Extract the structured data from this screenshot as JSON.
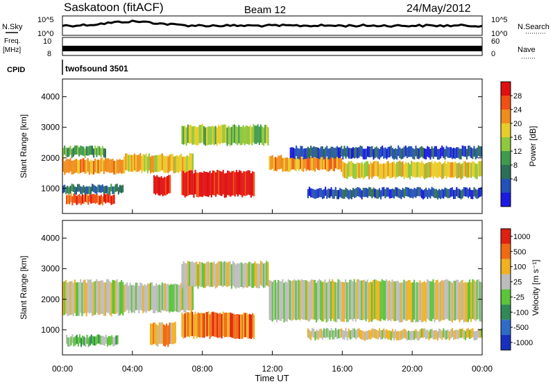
{
  "header": {
    "station": "Saskatoon (fitACF)",
    "beam": "Beam 12",
    "date": "24/May/2012"
  },
  "top_panels": {
    "nsky_label": "N.Sky",
    "nsky_top": "10^5",
    "nsky_bottom": "10^0",
    "nsearch_label": "N.Search",
    "nsearch_top": "10^5",
    "nsearch_bottom": "10^0",
    "freq_label": "Freq.",
    "freq_unit": "[MHz]",
    "freq_tick_top": "10",
    "freq_tick_bottom": "8",
    "nave_label": "Nave",
    "nave_tick_top": "60",
    "nave_tick_bottom": "0",
    "cpid_label": "CPID",
    "cpid_value": "twofsound 3501"
  },
  "colors": {
    "power_scale": [
      "#1a1ae0",
      "#2450b8",
      "#2e6e58",
      "#3f9a4c",
      "#8fc83c",
      "#e8cc2a",
      "#f08c1c",
      "#f05014",
      "#e01010"
    ],
    "velocity_scale": [
      "#1830c0",
      "#2f6cc8",
      "#2f8a55",
      "#5cc43a",
      "#bcbcbc",
      "#f0b020",
      "#f06a14",
      "#e02010"
    ]
  },
  "chart_data": [
    {
      "type": "heatmap",
      "name": "power",
      "ylabel": "Slant Range [km]",
      "xlabel": "",
      "colorbar_label": "Power [dB]",
      "colorbar_ticks": [
        "28",
        "24",
        "20",
        "16",
        "12",
        "8",
        "4"
      ],
      "y_ticks": [
        "4000",
        "3000",
        "2000",
        "1000"
      ],
      "ylim": [
        180,
        4580
      ],
      "xlim_hours": [
        0,
        24
      ],
      "bands": [
        {
          "t0": 0,
          "t1": 3.5,
          "r0": 1500,
          "r1": 1950,
          "level": 6
        },
        {
          "t0": 0,
          "t1": 2.5,
          "r0": 2050,
          "r1": 2350,
          "level": 3
        },
        {
          "t0": 0.2,
          "t1": 3.0,
          "r0": 500,
          "r1": 800,
          "level": 7
        },
        {
          "t0": 0,
          "t1": 3.5,
          "r0": 850,
          "r1": 1100,
          "level": 2
        },
        {
          "t0": 3.5,
          "t1": 7.5,
          "r0": 1550,
          "r1": 2100,
          "level": 5
        },
        {
          "t0": 5.2,
          "t1": 6.2,
          "r0": 800,
          "r1": 1400,
          "level": 8
        },
        {
          "t0": 6.8,
          "t1": 11.0,
          "r0": 750,
          "r1": 1550,
          "level": 8
        },
        {
          "t0": 6.8,
          "t1": 11.8,
          "r0": 2450,
          "r1": 3050,
          "level": 4
        },
        {
          "t0": 11.8,
          "t1": 16.0,
          "r0": 1600,
          "r1": 2050,
          "level": 6
        },
        {
          "t0": 16.0,
          "t1": 24.0,
          "r0": 1350,
          "r1": 1850,
          "level": 5
        },
        {
          "t0": 13.0,
          "t1": 24.0,
          "r0": 2000,
          "r1": 2350,
          "level": 1
        },
        {
          "t0": 14.0,
          "t1": 24.0,
          "r0": 700,
          "r1": 1000,
          "level": 1
        }
      ]
    },
    {
      "type": "heatmap",
      "name": "velocity",
      "ylabel": "Slant Range [km]",
      "xlabel": "Time UT",
      "colorbar_label": "Velocity [m s⁻¹]",
      "colorbar_ticks": [
        "1000",
        "500",
        "100",
        "25",
        "-25",
        "-100",
        "-500",
        "-1000"
      ],
      "y_ticks": [
        "4000",
        "3000",
        "2000",
        "1000"
      ],
      "x_ticks": [
        "00:00",
        "04:00",
        "08:00",
        "12:00",
        "16:00",
        "20:00",
        "00:00"
      ],
      "ylim": [
        180,
        4580
      ],
      "xlim_hours": [
        0,
        24
      ],
      "bands": [
        {
          "t0": 0,
          "t1": 3.5,
          "r0": 1500,
          "r1": 2600,
          "level": 4
        },
        {
          "t0": 0.2,
          "t1": 3.2,
          "r0": 500,
          "r1": 800,
          "level": 3
        },
        {
          "t0": 3.5,
          "t1": 7.5,
          "r0": 1600,
          "r1": 2500,
          "level": 4
        },
        {
          "t0": 6.8,
          "t1": 11.8,
          "r0": 2400,
          "r1": 3200,
          "level": 4
        },
        {
          "t0": 6.8,
          "t1": 11.0,
          "r0": 750,
          "r1": 1550,
          "level": 6
        },
        {
          "t0": 5.0,
          "t1": 6.5,
          "r0": 500,
          "r1": 1200,
          "level": 5
        },
        {
          "t0": 11.8,
          "t1": 24.0,
          "r0": 1300,
          "r1": 2600,
          "level": 4
        },
        {
          "t0": 14.0,
          "t1": 24.0,
          "r0": 700,
          "r1": 1000,
          "level": 4
        }
      ]
    }
  ]
}
